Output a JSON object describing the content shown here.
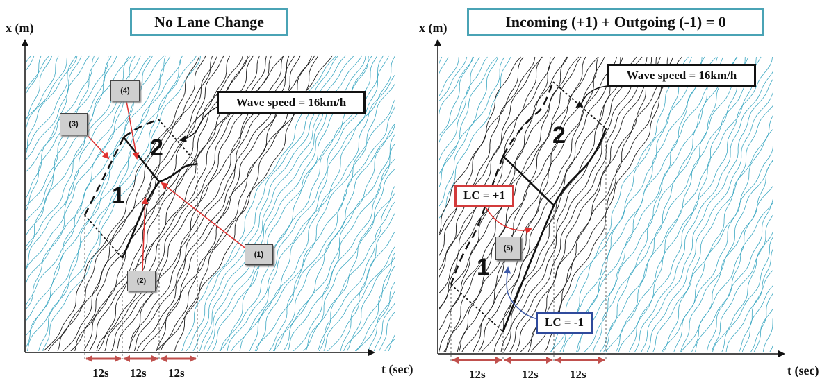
{
  "left_panel": {
    "title": "No Lane Change",
    "wave_speed": "Wave speed = 16km/h",
    "x_axis_label": "t (sec)",
    "y_axis_label": "x (m)",
    "region_labels": [
      "1",
      "2"
    ],
    "tags": [
      "(1)",
      "(2)",
      "(3)",
      "(4)"
    ],
    "durations": [
      "12s",
      "12s",
      "12s"
    ]
  },
  "right_panel": {
    "title": "Incoming (+1) + Outgoing (-1) = 0",
    "wave_speed": "Wave speed = 16km/h",
    "x_axis_label": "t (sec)",
    "y_axis_label": "x (m)",
    "region_labels": [
      "1",
      "2"
    ],
    "tags": [
      "(5)"
    ],
    "lc_incoming": "LC = +1",
    "lc_outgoing": "LC = -1",
    "durations": [
      "12s",
      "12s",
      "12s"
    ]
  },
  "colors": {
    "title_border": "#4aa3b5",
    "trajectory_cyan": "#3fa9c3",
    "trajectory_dark": "#1d1d1d",
    "arrow_red": "#e0302e",
    "duration_arrow": "#c0504d",
    "lc_incoming_border": "#d33b3b",
    "lc_outgoing_border": "#2f4a9c",
    "lc_outgoing_arrow": "#3d5aa8"
  }
}
